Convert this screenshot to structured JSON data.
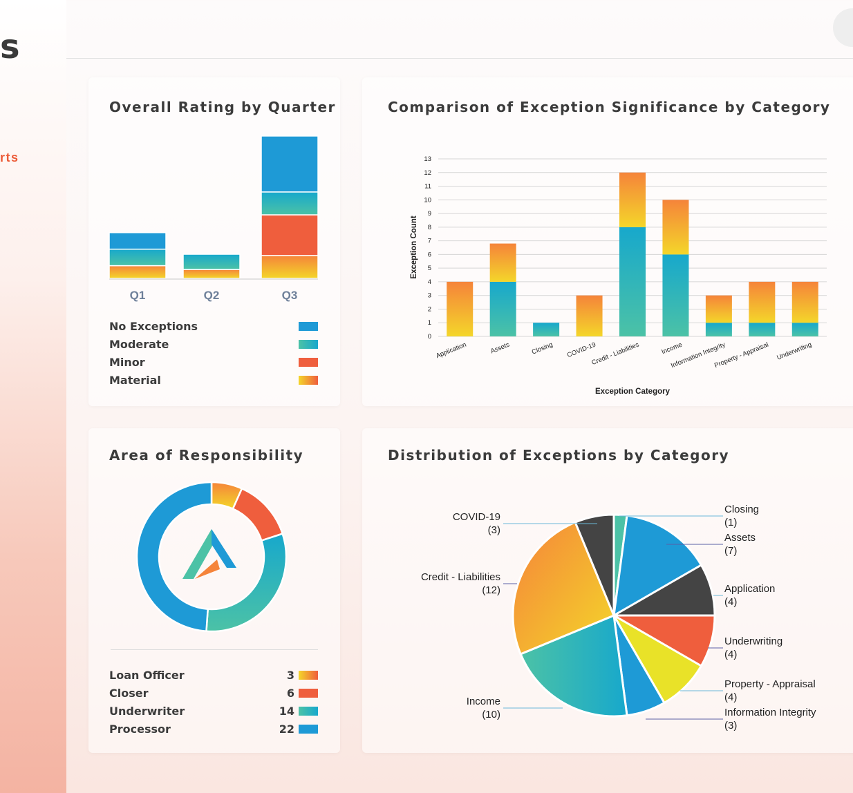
{
  "sidebar": {
    "title": "s",
    "link": "rts"
  },
  "colors": {
    "no_exceptions": "#1e9ad6",
    "moderate_top": "#17a8cc",
    "moderate_bottom": "#4cc2a6",
    "minor": "#ef5e3d",
    "material_top": "#f5843a",
    "material_bottom": "#f4d62a",
    "dark": "#444444",
    "yellow": "#e9e228"
  },
  "cards": {
    "rating": {
      "title": "Overall Rating by Quarter"
    },
    "significance": {
      "title": "Comparison of Exception Significance by Category"
    },
    "responsibility": {
      "title": "Area of Responsibility"
    },
    "distribution": {
      "title": "Distribution of Exceptions by Category"
    }
  },
  "chart_data": [
    {
      "type": "bar",
      "stacked": true,
      "title": "Overall Rating by Quarter",
      "categories": [
        "Q1",
        "Q2",
        "Q3"
      ],
      "series": [
        {
          "name": "Material",
          "values": [
            1,
            0.7,
            1.8
          ]
        },
        {
          "name": "Minor",
          "values": [
            0,
            0,
            3.2
          ]
        },
        {
          "name": "Moderate",
          "values": [
            1.3,
            1.2,
            1.8
          ]
        },
        {
          "name": "No Exceptions",
          "values": [
            1.3,
            0,
            4.4
          ]
        }
      ],
      "legend": [
        "No Exceptions",
        "Moderate",
        "Minor",
        "Material"
      ]
    },
    {
      "type": "bar",
      "stacked": true,
      "title": "Comparison of Exception Significance by Category",
      "xlabel": "Exception Category",
      "ylabel": "Exception Count",
      "ylim": [
        0,
        13
      ],
      "yticks": [
        0,
        1,
        2,
        3,
        4,
        5,
        6,
        7,
        8,
        9,
        10,
        11,
        12,
        13
      ],
      "categories": [
        "Application",
        "Assets",
        "Closing",
        "COVID-19",
        "Credit - Liabilities",
        "Income",
        "Information Integrity",
        "Property - Appraisal",
        "Underwriting"
      ],
      "series": [
        {
          "name": "bottom",
          "values": [
            0,
            4,
            1,
            0,
            8,
            6,
            1,
            1,
            1
          ]
        },
        {
          "name": "top",
          "values": [
            4,
            2.8,
            0,
            3,
            4,
            4,
            2,
            3,
            3
          ]
        }
      ],
      "grid": true
    },
    {
      "type": "pie",
      "donut": true,
      "title": "Area of Responsibility",
      "labels": [
        "Loan Officer",
        "Closer",
        "Underwriter",
        "Processor"
      ],
      "values": [
        3,
        6,
        14,
        22
      ]
    },
    {
      "type": "pie",
      "title": "Distribution of Exceptions by Category",
      "labels": [
        "Closing",
        "Assets",
        "Application",
        "Underwriting",
        "Property - Appraisal",
        "Information Integrity",
        "Income",
        "Credit - Liabilities",
        "COVID-19"
      ],
      "values": [
        1,
        7,
        4,
        4,
        4,
        3,
        10,
        12,
        3
      ]
    }
  ]
}
